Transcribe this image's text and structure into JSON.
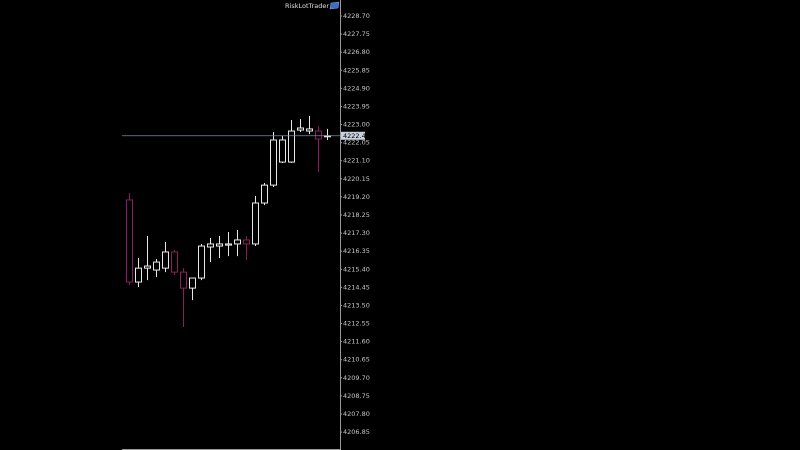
{
  "chart_data": {
    "type": "candlestick",
    "title": "RiskLotTrader",
    "open": [
      4219.04,
      4214.73,
      4215.46,
      4215.36,
      4215.46,
      4216.31,
      4215.25,
      4214.41,
      4214.94,
      4216.57,
      4216.62,
      4216.67,
      4216.73,
      4216.94,
      4216.73,
      4218.88,
      4219.82,
      4221.03,
      4221.03,
      4222.71,
      4222.66,
      4222.66,
      4222.4
    ],
    "high": [
      4219.4,
      4215.99,
      4217.15,
      4215.94,
      4216.83,
      4216.41,
      4215.46,
      4214.83,
      4216.73,
      4217.04,
      4217.15,
      4217.36,
      4217.46,
      4217.15,
      4219.25,
      4219.93,
      4222.61,
      4222.4,
      4223.24,
      4223.29,
      4223.45,
      4222.92,
      4222.77
    ],
    "low": [
      4214.57,
      4214.47,
      4214.83,
      4214.99,
      4215.25,
      4215.1,
      4212.37,
      4213.78,
      4214.83,
      4215.78,
      4215.99,
      4216.09,
      4216.09,
      4215.88,
      4216.62,
      4218.77,
      4219.72,
      4220.98,
      4220.98,
      4222.61,
      4222.5,
      4220.51,
      4222.19
    ],
    "close": [
      4214.73,
      4215.46,
      4215.57,
      4215.78,
      4216.31,
      4215.25,
      4214.41,
      4214.94,
      4216.62,
      4216.73,
      4216.73,
      4216.73,
      4216.94,
      4216.73,
      4218.88,
      4219.82,
      4222.19,
      4222.19,
      4222.66,
      4222.82,
      4222.77,
      4222.24,
      4222.41
    ],
    "up_color": "#e8e8e8",
    "down_color": "#8b1e5e",
    "current_price": 4222.41,
    "ylim": [
      4205.91,
      4229.54
    ],
    "yticks": [
      {
        "value": 4228.7,
        "label": "4228.70"
      },
      {
        "value": 4227.75,
        "label": "4227.75"
      },
      {
        "value": 4226.8,
        "label": "4226.80"
      },
      {
        "value": 4225.85,
        "label": "4225.85"
      },
      {
        "value": 4224.9,
        "label": "4224.90"
      },
      {
        "value": 4223.95,
        "label": "4223.95"
      },
      {
        "value": 4223.0,
        "label": "4223.00"
      },
      {
        "value": 4222.05,
        "label": "4222.05"
      },
      {
        "value": 4221.1,
        "label": "4221.10"
      },
      {
        "value": 4220.15,
        "label": "4220.15"
      },
      {
        "value": 4219.2,
        "label": "4219.20"
      },
      {
        "value": 4218.25,
        "label": "4218.25"
      },
      {
        "value": 4217.3,
        "label": "4217.30"
      },
      {
        "value": 4216.35,
        "label": "4216.35"
      },
      {
        "value": 4215.4,
        "label": "4215.40"
      },
      {
        "value": 4214.45,
        "label": "4214.45"
      },
      {
        "value": 4213.5,
        "label": "4213.50"
      },
      {
        "value": 4212.55,
        "label": "4212.55"
      },
      {
        "value": 4211.6,
        "label": "4211.60"
      },
      {
        "value": 4210.65,
        "label": "4210.65"
      },
      {
        "value": 4209.7,
        "label": "4209.70"
      },
      {
        "value": 4208.75,
        "label": "4208.75"
      },
      {
        "value": 4207.8,
        "label": "4207.80"
      },
      {
        "value": 4206.85,
        "label": "4206.85"
      }
    ]
  }
}
